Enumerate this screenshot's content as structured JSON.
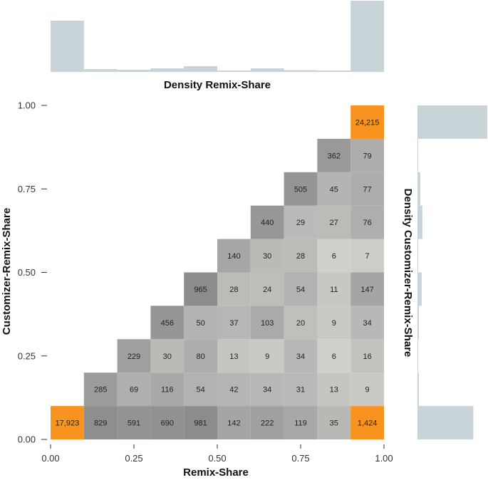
{
  "chart_data": {
    "type": "heatmap",
    "xlabel": "Remix-Share",
    "ylabel": "Customizer-Remix-Share",
    "top_hist_label": "Density Remix-Share",
    "right_hist_label": "Density Customizer-Remix-Share",
    "xlim": [
      0,
      1
    ],
    "ylim": [
      0,
      1
    ],
    "x_ticks": [
      "0.00",
      "0.25",
      "0.50",
      "0.75",
      "1.00"
    ],
    "y_ticks": [
      "0.00",
      "0.25",
      "0.50",
      "0.75",
      "1.00"
    ],
    "bin_width": 0.1,
    "cells": [
      {
        "col": 0,
        "row": 0,
        "count": 17923,
        "label": "17,923"
      },
      {
        "col": 1,
        "row": 0,
        "count": 829,
        "label": "829"
      },
      {
        "col": 2,
        "row": 0,
        "count": 591,
        "label": "591"
      },
      {
        "col": 3,
        "row": 0,
        "count": 690,
        "label": "690"
      },
      {
        "col": 4,
        "row": 0,
        "count": 981,
        "label": "981"
      },
      {
        "col": 5,
        "row": 0,
        "count": 142,
        "label": "142"
      },
      {
        "col": 6,
        "row": 0,
        "count": 222,
        "label": "222"
      },
      {
        "col": 7,
        "row": 0,
        "count": 119,
        "label": "119"
      },
      {
        "col": 8,
        "row": 0,
        "count": 35,
        "label": "35"
      },
      {
        "col": 9,
        "row": 0,
        "count": 1424,
        "label": "1,424"
      },
      {
        "col": 1,
        "row": 1,
        "count": 285,
        "label": "285"
      },
      {
        "col": 2,
        "row": 1,
        "count": 69,
        "label": "69"
      },
      {
        "col": 3,
        "row": 1,
        "count": 116,
        "label": "116"
      },
      {
        "col": 4,
        "row": 1,
        "count": 54,
        "label": "54"
      },
      {
        "col": 5,
        "row": 1,
        "count": 42,
        "label": "42"
      },
      {
        "col": 6,
        "row": 1,
        "count": 34,
        "label": "34"
      },
      {
        "col": 7,
        "row": 1,
        "count": 31,
        "label": "31"
      },
      {
        "col": 8,
        "row": 1,
        "count": 13,
        "label": "13"
      },
      {
        "col": 9,
        "row": 1,
        "count": 9,
        "label": "9"
      },
      {
        "col": 2,
        "row": 2,
        "count": 229,
        "label": "229"
      },
      {
        "col": 3,
        "row": 2,
        "count": 30,
        "label": "30"
      },
      {
        "col": 4,
        "row": 2,
        "count": 80,
        "label": "80"
      },
      {
        "col": 5,
        "row": 2,
        "count": 13,
        "label": "13"
      },
      {
        "col": 6,
        "row": 2,
        "count": 9,
        "label": "9"
      },
      {
        "col": 7,
        "row": 2,
        "count": 34,
        "label": "34"
      },
      {
        "col": 8,
        "row": 2,
        "count": 6,
        "label": "6"
      },
      {
        "col": 9,
        "row": 2,
        "count": 16,
        "label": "16"
      },
      {
        "col": 3,
        "row": 3,
        "count": 456,
        "label": "456"
      },
      {
        "col": 4,
        "row": 3,
        "count": 50,
        "label": "50"
      },
      {
        "col": 5,
        "row": 3,
        "count": 37,
        "label": "37"
      },
      {
        "col": 6,
        "row": 3,
        "count": 103,
        "label": "103"
      },
      {
        "col": 7,
        "row": 3,
        "count": 20,
        "label": "20"
      },
      {
        "col": 8,
        "row": 3,
        "count": 9,
        "label": "9"
      },
      {
        "col": 9,
        "row": 3,
        "count": 34,
        "label": "34"
      },
      {
        "col": 4,
        "row": 4,
        "count": 965,
        "label": "965"
      },
      {
        "col": 5,
        "row": 4,
        "count": 28,
        "label": "28"
      },
      {
        "col": 6,
        "row": 4,
        "count": 24,
        "label": "24"
      },
      {
        "col": 7,
        "row": 4,
        "count": 54,
        "label": "54"
      },
      {
        "col": 8,
        "row": 4,
        "count": 11,
        "label": "11"
      },
      {
        "col": 9,
        "row": 4,
        "count": 147,
        "label": "147"
      },
      {
        "col": 5,
        "row": 5,
        "count": 140,
        "label": "140"
      },
      {
        "col": 6,
        "row": 5,
        "count": 30,
        "label": "30"
      },
      {
        "col": 7,
        "row": 5,
        "count": 28,
        "label": "28"
      },
      {
        "col": 8,
        "row": 5,
        "count": 6,
        "label": "6"
      },
      {
        "col": 9,
        "row": 5,
        "count": 7,
        "label": "7"
      },
      {
        "col": 6,
        "row": 6,
        "count": 440,
        "label": "440"
      },
      {
        "col": 7,
        "row": 6,
        "count": 29,
        "label": "29"
      },
      {
        "col": 8,
        "row": 6,
        "count": 27,
        "label": "27"
      },
      {
        "col": 9,
        "row": 6,
        "count": 76,
        "label": "76"
      },
      {
        "col": 7,
        "row": 7,
        "count": 505,
        "label": "505"
      },
      {
        "col": 8,
        "row": 7,
        "count": 45,
        "label": "45"
      },
      {
        "col": 9,
        "row": 7,
        "count": 77,
        "label": "77"
      },
      {
        "col": 8,
        "row": 8,
        "count": 362,
        "label": "362"
      },
      {
        "col": 9,
        "row": 8,
        "count": 79,
        "label": "79"
      },
      {
        "col": 9,
        "row": 9,
        "count": 24215,
        "label": "24,215"
      }
    ],
    "highlight_threshold": 1000,
    "top_hist_rel": [
      0.72,
      0.04,
      0.03,
      0.05,
      0.08,
      0.02,
      0.05,
      0.025,
      0.02,
      1.0
    ],
    "right_hist_rel": [
      0.8,
      0.02,
      0.01,
      0.02,
      0.06,
      0.01,
      0.07,
      0.04,
      0.01,
      1.0
    ],
    "colors": {
      "highlight": "#F7931E",
      "hist_fill": "#C8D4D8",
      "cell_light": "#E6E6E1",
      "cell_dark": "#8C8C8C",
      "axis": "#333333"
    }
  }
}
